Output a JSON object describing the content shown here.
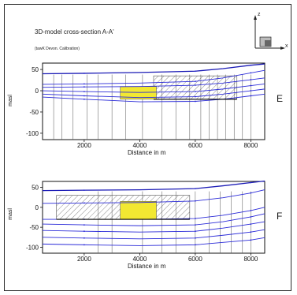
{
  "header": {
    "title": "3D-model cross-section A-A'",
    "subtitle": "(tawK Devon. Calibration)"
  },
  "axis_triad": {
    "z": "z",
    "x": "x"
  },
  "colors": {
    "contour": "#2b2bd8",
    "topography": "#1a1ab5",
    "zone_highlight": "#f2e832",
    "hatch": "#555555",
    "boundary": "#000000"
  },
  "chart_data": [
    {
      "type": "line",
      "panel_label": "E",
      "xlabel": "Distance in m",
      "ylabel": "masl",
      "xlim": [
        500,
        8500
      ],
      "ylim": [
        -115,
        65
      ],
      "xticks": [
        2000,
        4000,
        6000,
        8000
      ],
      "yticks": [
        50,
        0,
        -50,
        -100
      ],
      "grid": false,
      "series": [
        {
          "x": [
            500,
            2000,
            4000,
            6000,
            7000,
            8000,
            8500
          ],
          "y": [
            40,
            41,
            43,
            46,
            52,
            60,
            63
          ]
        },
        {
          "x": [
            500,
            2000,
            4000,
            6000,
            7000,
            8000,
            8500
          ],
          "y": [
            15,
            16,
            18,
            22,
            30,
            42,
            48
          ]
        },
        {
          "x": [
            500,
            2000,
            4000,
            6000,
            7000,
            8000,
            8500
          ],
          "y": [
            8,
            9,
            10,
            13,
            18,
            26,
            30
          ]
        },
        {
          "x": [
            500,
            2000,
            4000,
            6000,
            7000,
            8000,
            8500
          ],
          "y": [
            0,
            -2,
            -4,
            -2,
            4,
            12,
            16
          ]
        },
        {
          "x": [
            500,
            2000,
            4000,
            6000,
            7000,
            8000,
            8500
          ],
          "y": [
            -8,
            -12,
            -16,
            -14,
            -8,
            0,
            4
          ]
        },
        {
          "x": [
            500,
            2000,
            4000,
            6000,
            7000,
            8000,
            8500
          ],
          "y": [
            -15,
            -20,
            -26,
            -25,
            -20,
            -12,
            -8
          ]
        }
      ],
      "highlight_zone": {
        "x": [
          3300,
          4600
        ],
        "y": [
          -20,
          10
        ]
      },
      "hatched_zone": {
        "x": [
          4500,
          7500
        ],
        "y": [
          -20,
          35
        ]
      },
      "verticals": [
        900,
        1200,
        1600,
        2100,
        2500,
        3000,
        3500,
        4100,
        4800,
        5300,
        5800,
        6200,
        6500,
        6800,
        7100,
        7400,
        7700,
        8000
      ]
    },
    {
      "type": "line",
      "panel_label": "F",
      "xlabel": "Distance in m",
      "ylabel": "masl",
      "xlim": [
        500,
        8500
      ],
      "ylim": [
        -115,
        65
      ],
      "xticks": [
        2000,
        4000,
        6000,
        8000
      ],
      "yticks": [
        50,
        0,
        -50,
        -100
      ],
      "grid": false,
      "series": [
        {
          "x": [
            500,
            2000,
            4000,
            6000,
            7000,
            8000,
            8500
          ],
          "y": [
            42,
            43,
            44,
            47,
            54,
            62,
            66
          ]
        },
        {
          "x": [
            500,
            2000,
            4000,
            6000,
            7000,
            8000,
            8500
          ],
          "y": [
            10,
            11,
            12,
            16,
            24,
            36,
            44
          ]
        },
        {
          "x": [
            500,
            2000,
            4000,
            6000,
            7000,
            8000,
            8500
          ],
          "y": [
            -30,
            -30,
            -30,
            -28,
            -20,
            -8,
            0
          ]
        },
        {
          "x": [
            500,
            2000,
            4000,
            6000,
            7000,
            8000,
            8500
          ],
          "y": [
            -42,
            -44,
            -46,
            -44,
            -36,
            -24,
            -16
          ]
        },
        {
          "x": [
            500,
            2000,
            4000,
            6000,
            7000,
            8000,
            8500
          ],
          "y": [
            -58,
            -60,
            -62,
            -60,
            -52,
            -42,
            -36
          ]
        },
        {
          "x": [
            500,
            2000,
            4000,
            6000,
            7000,
            8000,
            8500
          ],
          "y": [
            -75,
            -77,
            -79,
            -77,
            -70,
            -62,
            -56
          ]
        },
        {
          "x": [
            500,
            2000,
            4000,
            6000,
            7000,
            8000,
            8500
          ],
          "y": [
            -92,
            -94,
            -96,
            -94,
            -88,
            -82,
            -76
          ]
        }
      ],
      "highlight_zone": {
        "x": [
          3300,
          4600
        ],
        "y": [
          -30,
          15
        ]
      },
      "hatched_zone": {
        "x": [
          1000,
          5800
        ],
        "y": [
          -30,
          30
        ]
      },
      "verticals": [
        2500,
        3000,
        4100,
        4800,
        5300,
        6000,
        6500,
        6900,
        7300,
        7700,
        8000
      ]
    }
  ]
}
